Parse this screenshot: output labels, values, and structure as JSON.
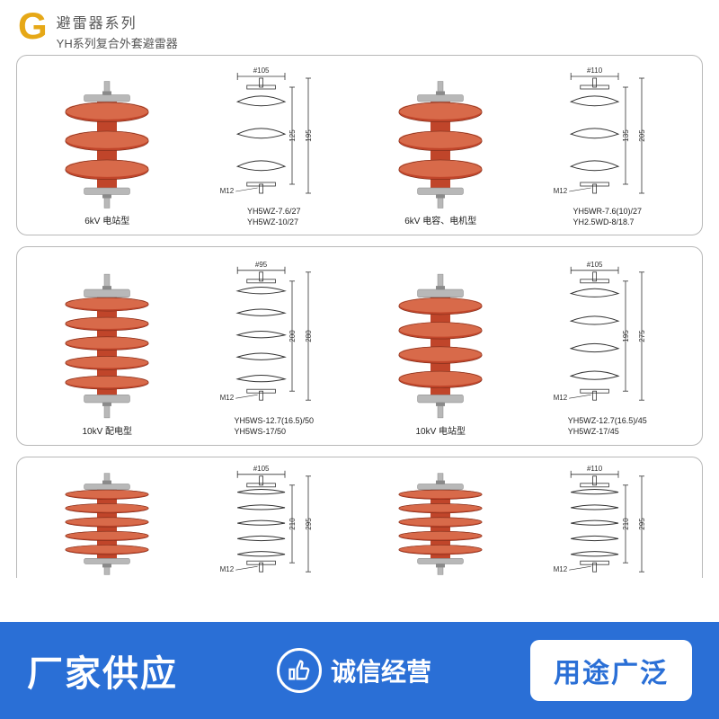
{
  "header": {
    "g": "G",
    "title": "避雷器系列",
    "subtitle": "YH系列复合外套避雷器"
  },
  "colors": {
    "arrester_body": "#c0452a",
    "arrester_highlight": "#d86a4a",
    "metal": "#b8b8b8",
    "metal_dark": "#8a8a8a",
    "diagram_stroke": "#333333",
    "panel_border": "#b8b8b8",
    "bar_bg": "#2a6fd6",
    "badge_text": "#2a6fd6",
    "header_accent": "#e6a817"
  },
  "products": [
    {
      "fins": 3,
      "caption": "6kV 电站型",
      "models": [
        "YH5WZ-7.6/27",
        "YH5WZ-10/27"
      ],
      "diagram": {
        "dia": "#105",
        "h1": "125",
        "h2": "195",
        "bolt": "M12"
      },
      "mate": {
        "fins": 3,
        "caption": "6kV 电容、电机型",
        "models": [
          "YH5WR-7.6(10)/27",
          "YH2.5WD-8/18.7"
        ],
        "diagram": {
          "dia": "#110",
          "h1": "135",
          "h2": "205",
          "bolt": "M12"
        }
      }
    },
    {
      "fins": 5,
      "caption": "10kV 配电型",
      "models": [
        "YH5WS-12.7(16.5)/50",
        "YH5WS-17/50"
      ],
      "diagram": {
        "dia": "#95",
        "h1": "200",
        "h2": "280",
        "bolt": "M12"
      },
      "mate": {
        "fins": 4,
        "caption": "10kV 电站型",
        "models": [
          "YH5WZ-12.7(16.5)/45",
          "YH5WZ-17/45"
        ],
        "diagram": {
          "dia": "#105",
          "h1": "195",
          "h2": "275",
          "bolt": "M12"
        }
      }
    },
    {
      "fins": 5,
      "caption": "",
      "models": [],
      "diagram": {
        "dia": "#105",
        "h1": "210",
        "h2": "295",
        "bolt": "M12"
      },
      "mate": {
        "fins": 5,
        "caption": "",
        "models": [],
        "diagram": {
          "dia": "#110",
          "h1": "210",
          "h2": "295",
          "bolt": "M12"
        }
      }
    }
  ],
  "bottom_bar": {
    "left": "厂家供应",
    "mid": "诚信经营",
    "right": "用途广泛"
  }
}
